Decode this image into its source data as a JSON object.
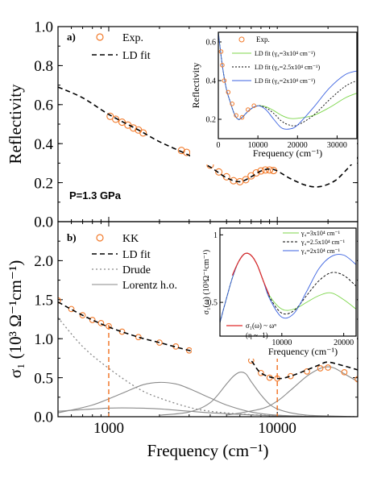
{
  "chart_data": [
    {
      "type": "line",
      "panel_label": "a)",
      "ylabel": "Reflectivity",
      "xscale": "log",
      "xlim": [
        500,
        30000
      ],
      "ylim": [
        0.0,
        1.0
      ],
      "yticks": [
        "0.0",
        "0.2",
        "0.4",
        "0.6",
        "0.8",
        "1.0"
      ],
      "annotation": "P=1.3 GPa",
      "legend": [
        "Exp.",
        "LD fit"
      ],
      "series": [
        {
          "name": "Exp.",
          "style": "orange-circles",
          "x": [
            1020,
            1100,
            1200,
            1300,
            1400,
            1500,
            1600,
            2700,
            2900,
            3200,
            3600,
            4000,
            4500,
            5000,
            5500,
            6000,
            6500,
            7000,
            7500,
            8000,
            8500,
            9000,
            9500
          ],
          "y": [
            0.54,
            0.525,
            0.51,
            0.495,
            0.48,
            0.47,
            0.455,
            0.365,
            0.355,
            0.34,
            0.315,
            0.29,
            0.255,
            0.23,
            0.21,
            0.205,
            0.215,
            0.235,
            0.25,
            0.26,
            0.265,
            0.265,
            0.262
          ]
        },
        {
          "name": "LD fit",
          "style": "dashed",
          "x": [
            500,
            700,
            1000,
            1500,
            2000,
            3000,
            4000,
            5000,
            6000,
            7000,
            8000,
            9000,
            10000,
            12000,
            15000,
            18000,
            22000,
            26000,
            30000
          ],
          "y": [
            0.69,
            0.635,
            0.55,
            0.47,
            0.41,
            0.34,
            0.28,
            0.225,
            0.205,
            0.23,
            0.26,
            0.27,
            0.26,
            0.22,
            0.185,
            0.18,
            0.21,
            0.27,
            0.33
          ]
        }
      ]
    },
    {
      "type": "line",
      "panel_label": "b)",
      "xlabel": "Frequency (cm⁻¹)",
      "ylabel": "σ₁ (10³ Ω⁻¹cm⁻¹)",
      "xscale": "log",
      "xlim": [
        500,
        30000
      ],
      "ylim": [
        0.0,
        2.5
      ],
      "yticks": [
        "0.0",
        "0.5",
        "1.0",
        "1.5",
        "2.0"
      ],
      "xticks": [
        "1000",
        "10000"
      ],
      "legend": [
        "KK",
        "LD fit",
        "Drude",
        "Lorentz h.o."
      ],
      "vertical_markers_x": [
        1000,
        10000
      ],
      "series": [
        {
          "name": "KK",
          "style": "orange-circles",
          "x": [
            500,
            600,
            700,
            800,
            900,
            1000,
            1200,
            1500,
            2000,
            2500,
            3000,
            3500,
            4000,
            4500,
            5000,
            5500,
            6000,
            6500,
            7000,
            8000,
            9000,
            10000,
            12000,
            15000,
            18000,
            20000,
            25000,
            30000
          ],
          "y": [
            1.49,
            1.38,
            1.3,
            1.24,
            1.2,
            1.16,
            1.09,
            1.02,
            0.95,
            0.9,
            0.85,
            0.82,
            0.8,
            0.81,
            0.85,
            0.88,
            0.88,
            0.83,
            0.72,
            0.56,
            0.5,
            0.49,
            0.52,
            0.58,
            0.62,
            0.63,
            0.57,
            0.48
          ]
        },
        {
          "name": "LD fit",
          "style": "dashed",
          "x": [
            500,
            700,
            1000,
            1500,
            2000,
            3000,
            4000,
            5000,
            6000,
            7000,
            8000,
            10000,
            12000,
            15000,
            18000,
            20000,
            25000,
            30000
          ],
          "y": [
            1.47,
            1.3,
            1.15,
            1.02,
            0.95,
            0.85,
            0.8,
            0.84,
            0.87,
            0.72,
            0.56,
            0.49,
            0.52,
            0.6,
            0.67,
            0.7,
            0.65,
            0.6
          ]
        },
        {
          "name": "Drude",
          "style": "dotted-grey",
          "x": [
            500,
            700,
            1000,
            1500,
            2000,
            3000,
            4000,
            6000,
            10000,
            20000,
            30000
          ],
          "y": [
            1.27,
            0.9,
            0.62,
            0.36,
            0.24,
            0.12,
            0.07,
            0.035,
            0.012,
            0.003,
            0.001
          ]
        },
        {
          "name": "Lorentz h.o.",
          "style": "solid-grey",
          "components": [
            {
              "x": [
                500,
                1000,
                1500,
                2000,
                3000,
                4000,
                6000,
                10000,
                20000,
                30000
              ],
              "y": [
                0.07,
                0.11,
                0.11,
                0.1,
                0.07,
                0.05,
                0.03,
                0.01,
                0.0,
                0.0
              ]
            },
            {
              "x": [
                500,
                800,
                1200,
                1600,
                2000,
                2500,
                3000,
                4000,
                5000,
                7000,
                10000,
                20000,
                30000
              ],
              "y": [
                0.05,
                0.15,
                0.3,
                0.41,
                0.44,
                0.42,
                0.36,
                0.24,
                0.15,
                0.06,
                0.02,
                0.0,
                0.0
              ]
            },
            {
              "x": [
                2000,
                3000,
                4000,
                5000,
                5500,
                6000,
                6500,
                7000,
                8000,
                9000,
                10000,
                12000,
                15000,
                20000,
                30000
              ],
              "y": [
                0.02,
                0.06,
                0.18,
                0.42,
                0.52,
                0.57,
                0.55,
                0.45,
                0.28,
                0.16,
                0.1,
                0.05,
                0.02,
                0.01,
                0.0
              ]
            },
            {
              "x": [
                5000,
                8000,
                10000,
                12000,
                15000,
                18000,
                20000,
                22000,
                25000,
                30000
              ],
              "y": [
                0.02,
                0.1,
                0.2,
                0.34,
                0.52,
                0.62,
                0.64,
                0.62,
                0.55,
                0.45
              ]
            }
          ]
        }
      ]
    },
    {
      "type": "line",
      "inset_of": "a)",
      "xlabel": "Frequency (cm⁻¹)",
      "ylabel": "Reflectivity",
      "xlim": [
        0,
        35000
      ],
      "ylim": [
        0.1,
        0.65
      ],
      "xticks": [
        "0",
        "10000",
        "20000",
        "30000"
      ],
      "yticks": [
        "0.2",
        "0.4",
        "0.6"
      ],
      "legend": [
        "Exp.",
        "LD fit (γ₄=3x10⁴ cm⁻¹)",
        "LD fit (γ₄=2.5x10⁴ cm⁻¹)",
        "LD fit (γ₄=2x10⁴ cm⁻¹)"
      ],
      "series": [
        {
          "name": "Exp.",
          "style": "orange-circles",
          "x": [
            700,
            1000,
            1500,
            2500,
            3500,
            4500,
            6000,
            7500,
            9000
          ],
          "y": [
            0.55,
            0.48,
            0.4,
            0.34,
            0.28,
            0.22,
            0.21,
            0.25,
            0.27
          ]
        },
        {
          "name": "LD fit (γ₄=3x10⁴ cm⁻¹)",
          "color": "#7cd64a",
          "x": [
            0,
            1000,
            2000,
            3000,
            4000,
            5000,
            6000,
            8000,
            10000,
            12000,
            14000,
            16000,
            18000,
            20000,
            24000,
            28000,
            32000,
            35000
          ],
          "y": [
            0.65,
            0.48,
            0.36,
            0.29,
            0.23,
            0.2,
            0.21,
            0.25,
            0.27,
            0.265,
            0.245,
            0.22,
            0.205,
            0.205,
            0.22,
            0.26,
            0.31,
            0.335
          ]
        },
        {
          "name": "LD fit (γ₄=2.5x10⁴ cm⁻¹)",
          "color": "#000000",
          "style": "dotted",
          "x": [
            0,
            1000,
            2000,
            3000,
            4000,
            5000,
            6000,
            8000,
            10000,
            12000,
            14000,
            16000,
            18000,
            20000,
            24000,
            28000,
            32000,
            35000
          ],
          "y": [
            0.65,
            0.48,
            0.36,
            0.29,
            0.23,
            0.2,
            0.21,
            0.25,
            0.27,
            0.26,
            0.23,
            0.19,
            0.17,
            0.17,
            0.22,
            0.3,
            0.37,
            0.4
          ]
        },
        {
          "name": "LD fit (γ₄=2x10⁴ cm⁻¹)",
          "color": "#3b62e0",
          "x": [
            0,
            1000,
            2000,
            3000,
            4000,
            5000,
            6000,
            8000,
            10000,
            12000,
            14000,
            16000,
            18000,
            20000,
            24000,
            28000,
            32000,
            35000
          ],
          "y": [
            0.65,
            0.48,
            0.36,
            0.29,
            0.23,
            0.2,
            0.21,
            0.25,
            0.27,
            0.25,
            0.2,
            0.155,
            0.15,
            0.17,
            0.26,
            0.36,
            0.43,
            0.45
          ]
        }
      ]
    },
    {
      "type": "line",
      "inset_of": "b)",
      "xlabel": "Frequency (cm⁻¹)",
      "ylabel": "σ₁(ω) (10³Ω⁻¹cm⁻¹)",
      "xlim": [
        0,
        22000
      ],
      "ylim": [
        0.25,
        1.05
      ],
      "xticks": [
        "10000",
        "20000"
      ],
      "yticks": [
        "0.5",
        "1"
      ],
      "legend_top": [
        "γ₄=3x10⁴ cm⁻¹",
        "γ₄=2.5x10⁴ cm⁻¹",
        "γ₄=2x10⁴ cm⁻¹"
      ],
      "legend_bottom": [
        "σ₁(ω) ~ ωⁿ",
        "(η ~ -1)"
      ],
      "series": [
        {
          "name": "γ₄=3x10⁴ cm⁻¹",
          "color": "#7cd64a",
          "x": [
            0,
            1000,
            2000,
            3000,
            4000,
            5000,
            6000,
            7000,
            8000,
            10000,
            12000,
            14000,
            16000,
            18000,
            20000,
            22000
          ],
          "y": [
            0.35,
            0.52,
            0.68,
            0.8,
            0.86,
            0.85,
            0.78,
            0.66,
            0.55,
            0.45,
            0.45,
            0.5,
            0.55,
            0.57,
            0.52,
            0.45
          ]
        },
        {
          "name": "γ₄=2.5x10⁴ cm⁻¹",
          "color": "#000000",
          "style": "dashed",
          "x": [
            0,
            1000,
            2000,
            3000,
            4000,
            5000,
            6000,
            7000,
            8000,
            10000,
            12000,
            14000,
            16000,
            18000,
            20000,
            22000
          ],
          "y": [
            0.35,
            0.52,
            0.68,
            0.8,
            0.86,
            0.85,
            0.78,
            0.66,
            0.54,
            0.42,
            0.44,
            0.55,
            0.66,
            0.72,
            0.7,
            0.62
          ]
        },
        {
          "name": "γ₄=2x10⁴ cm⁻¹",
          "color": "#3b62e0",
          "x": [
            0,
            1000,
            2000,
            3000,
            4000,
            5000,
            6000,
            7000,
            8000,
            10000,
            12000,
            14000,
            16000,
            18000,
            20000,
            22000
          ],
          "y": [
            0.35,
            0.52,
            0.68,
            0.8,
            0.86,
            0.85,
            0.78,
            0.66,
            0.53,
            0.39,
            0.42,
            0.58,
            0.75,
            0.84,
            0.85,
            0.78
          ]
        },
        {
          "name": "σ₁(ω) ~ ωⁿ",
          "color": "#e02a2a",
          "x": [
            2000,
            3000,
            4000,
            5000,
            6000,
            7000,
            8000
          ],
          "y": [
            0.7,
            0.8,
            0.86,
            0.85,
            0.78,
            0.66,
            0.55
          ]
        }
      ]
    }
  ]
}
